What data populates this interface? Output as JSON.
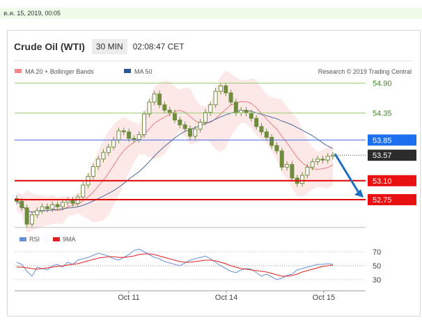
{
  "header": {
    "date": "ต.ค. 15, 2019, 00:05",
    "title": "Crude Oil (WTI)",
    "timeframe": "30 MIN",
    "time": "02:08:47 CET"
  },
  "legend": {
    "bollinger": "MA 20 + Bollinger Bands",
    "ma50": "MA 50",
    "credit": "Research © 2019 Trading Central"
  },
  "colors": {
    "candle": "#6f8c3f",
    "bands": "#fde2e2",
    "ma20": "#e77d7d",
    "ma50": "#4a6a9c",
    "target_line": "#9ccb74",
    "pivot_line": "#4169e1",
    "support_line": "#e00000",
    "arrow": "#1f6fbf",
    "rsi": "#6a8fd8",
    "rsi_ma": "#e02020"
  },
  "chart_data": [
    {
      "type": "candlestick",
      "title": "Crude Oil (WTI)",
      "timeframe": "30 MIN",
      "x_ticks": [
        "Oct 11",
        "Oct 14",
        "Oct 15"
      ],
      "ylim": [
        52.25,
        55.15
      ],
      "indicators": [
        "MA 20 + Bollinger Bands",
        "MA 50"
      ],
      "close": [
        52.72,
        52.6,
        52.3,
        52.47,
        52.55,
        52.62,
        52.58,
        52.66,
        52.62,
        52.7,
        52.74,
        52.68,
        52.8,
        53.02,
        53.18,
        53.36,
        53.5,
        53.62,
        53.72,
        53.85,
        54.02,
        54.0,
        53.88,
        53.86,
        53.95,
        54.33,
        54.55,
        54.7,
        54.5,
        54.4,
        54.35,
        54.22,
        54.13,
        54.06,
        53.92,
        54.05,
        54.18,
        54.36,
        54.5,
        54.75,
        54.85,
        54.72,
        54.55,
        54.35,
        54.4,
        54.35,
        54.25,
        54.1,
        54.0,
        53.9,
        53.75,
        53.65,
        53.35,
        53.4,
        53.15,
        53.05,
        53.2,
        53.35,
        53.45,
        53.5,
        53.48,
        53.55,
        53.57
      ],
      "levels": [
        {
          "label": "54.90",
          "value": 54.9,
          "style": "resistance"
        },
        {
          "label": "54.35",
          "value": 54.35,
          "style": "resistance"
        },
        {
          "label": "53.85",
          "value": 53.85,
          "style": "pivot"
        },
        {
          "label": "53.57",
          "value": 53.57,
          "style": "last"
        },
        {
          "label": "53.10",
          "value": 53.1,
          "style": "support"
        },
        {
          "label": "52.75",
          "value": 52.75,
          "style": "support"
        }
      ],
      "arrow": {
        "from_value": 53.57,
        "to_value": 52.75,
        "direction": "down"
      }
    },
    {
      "type": "line",
      "title": "RSI",
      "series": [
        {
          "name": "RSI",
          "values": [
            55,
            52,
            42,
            35,
            48,
            46,
            44,
            50,
            52,
            48,
            55,
            52,
            58,
            60,
            62,
            65,
            68,
            66,
            64,
            60,
            58,
            62,
            66,
            72,
            74,
            70,
            66,
            62,
            60,
            56,
            54,
            52,
            50,
            54,
            58,
            60,
            62,
            64,
            60,
            55,
            50,
            46,
            42,
            40,
            44,
            46,
            45,
            40,
            35,
            38,
            34,
            30,
            32,
            36,
            38,
            44,
            46,
            48,
            50,
            52,
            52,
            53,
            52
          ]
        },
        {
          "name": "9MA",
          "values": [
            48,
            48,
            47,
            46,
            45,
            46,
            47,
            48,
            49,
            50,
            51,
            52,
            53,
            55,
            57,
            59,
            61,
            62,
            63,
            63,
            62,
            62,
            63,
            64,
            66,
            67,
            67,
            66,
            64,
            62,
            60,
            58,
            56,
            55,
            55,
            56,
            57,
            58,
            58,
            57,
            55,
            53,
            50,
            48,
            46,
            45,
            44,
            43,
            42,
            41,
            39,
            37,
            35,
            35,
            36,
            38,
            41,
            43,
            45,
            47,
            49,
            50,
            51
          ]
        }
      ],
      "y_ticks": [
        70,
        50,
        30
      ],
      "ylim": [
        20,
        80
      ]
    }
  ]
}
